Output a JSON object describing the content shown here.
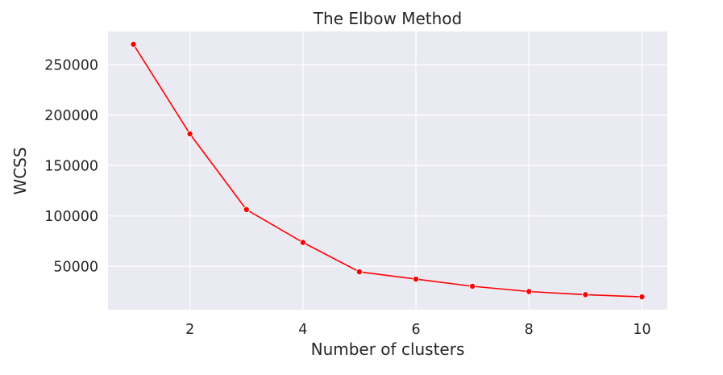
{
  "chart_data": {
    "type": "line",
    "title": "The Elbow Method",
    "xlabel": "Number of clusters",
    "ylabel": "WCSS",
    "x": [
      1,
      2,
      3,
      4,
      5,
      6,
      7,
      8,
      9,
      10
    ],
    "series": [
      {
        "values": [
          270300,
          181400,
          106300,
          73700,
          44500,
          37300,
          30200,
          25000,
          21900,
          19700
        ],
        "color": "#ff0000",
        "marker": "circle"
      }
    ],
    "xlim": [
      0.55,
      10.45
    ],
    "ylim": [
      7000,
      283000
    ],
    "xticks": [
      2,
      4,
      6,
      8,
      10
    ],
    "xtick_labels": [
      "2",
      "4",
      "6",
      "8",
      "10"
    ],
    "yticks": [
      50000,
      100000,
      150000,
      200000,
      250000
    ],
    "ytick_labels": [
      "50000",
      "100000",
      "150000",
      "200000",
      "250000"
    ],
    "grid": true,
    "background_color": "#eaeaf2",
    "grid_color": "#ffffff"
  }
}
